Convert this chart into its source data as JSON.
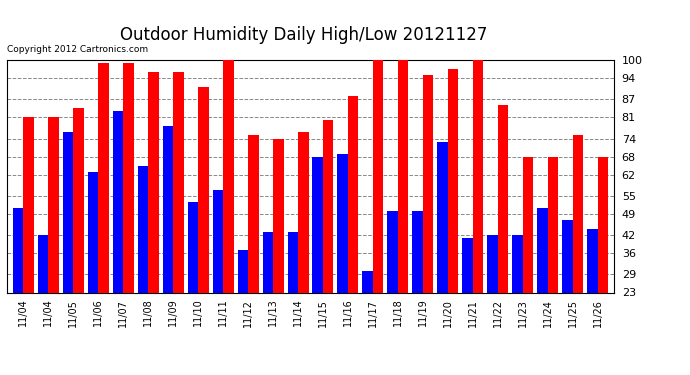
{
  "title": "Outdoor Humidity Daily High/Low 20121127",
  "copyright": "Copyright 2012 Cartronics.com",
  "labels": [
    "11/04",
    "11/04",
    "11/05",
    "11/06",
    "11/07",
    "11/08",
    "11/09",
    "11/10",
    "11/11",
    "11/12",
    "11/13",
    "11/14",
    "11/15",
    "11/16",
    "11/17",
    "11/18",
    "11/19",
    "11/20",
    "11/21",
    "11/22",
    "11/23",
    "11/24",
    "11/25",
    "11/26"
  ],
  "high": [
    81,
    81,
    84,
    99,
    99,
    96,
    96,
    91,
    100,
    75,
    74,
    76,
    80,
    88,
    100,
    100,
    95,
    97,
    100,
    85,
    68,
    68,
    75,
    68
  ],
  "low": [
    51,
    42,
    76,
    63,
    83,
    65,
    78,
    53,
    57,
    37,
    43,
    43,
    68,
    69,
    30,
    50,
    50,
    73,
    41,
    42,
    42,
    51,
    47,
    44
  ],
  "ylim_min": 23,
  "ylim_max": 100,
  "yticks": [
    23,
    29,
    36,
    42,
    49,
    55,
    62,
    68,
    74,
    81,
    87,
    94,
    100
  ],
  "high_color": "#ff0000",
  "low_color": "#0000ff",
  "bg_color": "#ffffff",
  "grid_color": "#888888",
  "title_fontsize": 12,
  "tick_fontsize": 8,
  "label_fontsize": 7
}
